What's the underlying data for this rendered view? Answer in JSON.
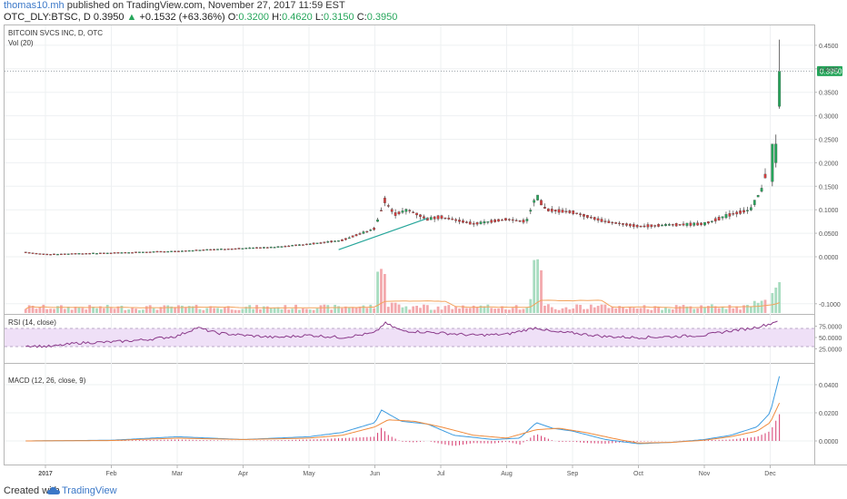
{
  "header": {
    "author": "thomas10.mh",
    "published_text": "published on TradingView.com, November 27, 2017 11:59 EST",
    "symbol": "OTC_DLY:BTSC, D",
    "last": "0.3950",
    "change": "+0.1532 (+63.36%)",
    "o_label": "O:",
    "o_value": "0.3200",
    "h_label": "H:",
    "h_value": "0.4620",
    "l_label": "L:",
    "l_value": "0.3150",
    "c_label": "C:",
    "c_value": "0.3950"
  },
  "panes": {
    "main_title": "BITCOIN SVCS INC, D, OTC",
    "vol_title": "Vol (20)",
    "rsi_title": "RSI (14, close)",
    "macd_title": "MACD (12, 26, close, 9)"
  },
  "price_badge": "0.3950",
  "footer": {
    "created_with": "Created with",
    "brand": "TradingView"
  },
  "colors": {
    "up": "#26a65b",
    "down": "#d33e3e",
    "vol_up": "#a8dcc0",
    "vol_down": "#f3a9ad",
    "vol_ma": "#f3a35c",
    "rsi_line": "#8a3a8a",
    "rsi_band": "#efe0f7",
    "macd_line": "#3c9be0",
    "signal_line": "#f08a3b",
    "hist": "#d63a6e",
    "trendline": "#26a69a",
    "badge": "#26a65b"
  },
  "chart_data": [
    {
      "type": "candlestick",
      "title": "BITCOIN SVCS INC, D, OTC",
      "x_tick_labels": [
        "2017",
        "Feb",
        "Mar",
        "Apr",
        "May",
        "Jun",
        "Jul",
        "Aug",
        "Sep",
        "Oct",
        "Nov",
        "Dec"
      ],
      "x_tick_months": [
        0,
        1,
        2,
        3,
        4,
        5,
        6,
        7,
        8,
        9,
        10,
        11
      ],
      "y_ticks": [
        "0.4500",
        "0.4000",
        "0.3500",
        "0.3000",
        "0.2500",
        "0.2000",
        "0.1500",
        "0.1000",
        "0.0500",
        "0.0000",
        "-0.1000"
      ],
      "ylim": [
        -0.1,
        0.45
      ],
      "price_points": [
        [
          -0.3,
          0.01
        ],
        [
          0,
          0.005
        ],
        [
          1,
          0.008
        ],
        [
          2,
          0.012
        ],
        [
          3,
          0.018
        ],
        [
          3.45,
          0.02
        ],
        [
          4,
          0.027
        ],
        [
          4.5,
          0.035
        ],
        [
          5,
          0.06
        ],
        [
          5.15,
          0.12
        ],
        [
          5.3,
          0.09
        ],
        [
          5.5,
          0.1
        ],
        [
          5.8,
          0.08
        ],
        [
          6,
          0.085
        ],
        [
          6.5,
          0.07
        ],
        [
          7,
          0.08
        ],
        [
          7.3,
          0.075
        ],
        [
          7.45,
          0.13
        ],
        [
          7.6,
          0.1
        ],
        [
          8,
          0.095
        ],
        [
          8.5,
          0.075
        ],
        [
          9,
          0.065
        ],
        [
          9.5,
          0.068
        ],
        [
          10,
          0.07
        ],
        [
          10.4,
          0.09
        ],
        [
          10.7,
          0.1
        ],
        [
          10.9,
          0.15
        ],
        [
          11,
          0.24
        ],
        [
          11.12,
          0.32
        ],
        [
          11.14,
          0.395
        ]
      ],
      "last_candle": {
        "open": 0.32,
        "high": 0.462,
        "low": 0.315,
        "close": 0.395
      },
      "last_price": 0.395
    },
    {
      "type": "bar",
      "title": "Vol (20)",
      "series": [
        {
          "name": "Vol (20)"
        }
      ]
    },
    {
      "type": "line",
      "title": "RSI (14, close)",
      "y_ticks": [
        "75.0000",
        "50.0000",
        "25.0000"
      ],
      "ylim": [
        20,
        92
      ],
      "band": [
        30,
        70
      ],
      "points": [
        [
          -0.3,
          32
        ],
        [
          0.1,
          30
        ],
        [
          0.5,
          38
        ],
        [
          1,
          40
        ],
        [
          1.5,
          45
        ],
        [
          2,
          53
        ],
        [
          2.3,
          72
        ],
        [
          2.6,
          60
        ],
        [
          3,
          55
        ],
        [
          3.5,
          50
        ],
        [
          4,
          55
        ],
        [
          4.5,
          50
        ],
        [
          5,
          60
        ],
        [
          5.15,
          82
        ],
        [
          5.4,
          65
        ],
        [
          6,
          60
        ],
        [
          6.5,
          55
        ],
        [
          7,
          57
        ],
        [
          7.45,
          72
        ],
        [
          7.7,
          62
        ],
        [
          8,
          60
        ],
        [
          8.5,
          52
        ],
        [
          9,
          50
        ],
        [
          9.5,
          52
        ],
        [
          10,
          55
        ],
        [
          10.4,
          65
        ],
        [
          10.7,
          70
        ],
        [
          11,
          80
        ],
        [
          11.14,
          90
        ]
      ]
    },
    {
      "type": "line",
      "title": "MACD (12, 26, close, 9)",
      "y_ticks": [
        "0.0400",
        "0.0200",
        "0.0000"
      ],
      "ylim": [
        -0.006,
        0.046
      ],
      "macd_points": [
        [
          -0.3,
          0
        ],
        [
          1,
          0.0005
        ],
        [
          2,
          0.003
        ],
        [
          3,
          0.001
        ],
        [
          4,
          0.003
        ],
        [
          4.5,
          0.006
        ],
        [
          5,
          0.013
        ],
        [
          5.1,
          0.022
        ],
        [
          5.4,
          0.014
        ],
        [
          5.8,
          0.012
        ],
        [
          6.2,
          0.004
        ],
        [
          6.8,
          0.001
        ],
        [
          7.2,
          0.002
        ],
        [
          7.45,
          0.013
        ],
        [
          7.7,
          0.009
        ],
        [
          8,
          0.007
        ],
        [
          8.5,
          0.001
        ],
        [
          9,
          -0.002
        ],
        [
          9.5,
          -0.001
        ],
        [
          10,
          0.001
        ],
        [
          10.4,
          0.004
        ],
        [
          10.8,
          0.01
        ],
        [
          11,
          0.02
        ],
        [
          11.14,
          0.046
        ]
      ],
      "signal_points": [
        [
          -0.3,
          0
        ],
        [
          1,
          0.0003
        ],
        [
          2,
          0.002
        ],
        [
          3,
          0.001
        ],
        [
          4,
          0.002
        ],
        [
          4.5,
          0.004
        ],
        [
          5,
          0.01
        ],
        [
          5.2,
          0.015
        ],
        [
          5.6,
          0.014
        ],
        [
          6,
          0.01
        ],
        [
          6.5,
          0.004
        ],
        [
          7,
          0.002
        ],
        [
          7.45,
          0.008
        ],
        [
          7.8,
          0.009
        ],
        [
          8.2,
          0.006
        ],
        [
          8.7,
          0.001
        ],
        [
          9,
          -0.0015
        ],
        [
          9.5,
          -0.001
        ],
        [
          10,
          0.0005
        ],
        [
          10.4,
          0.003
        ],
        [
          10.8,
          0.007
        ],
        [
          11,
          0.013
        ],
        [
          11.14,
          0.027
        ]
      ]
    }
  ]
}
